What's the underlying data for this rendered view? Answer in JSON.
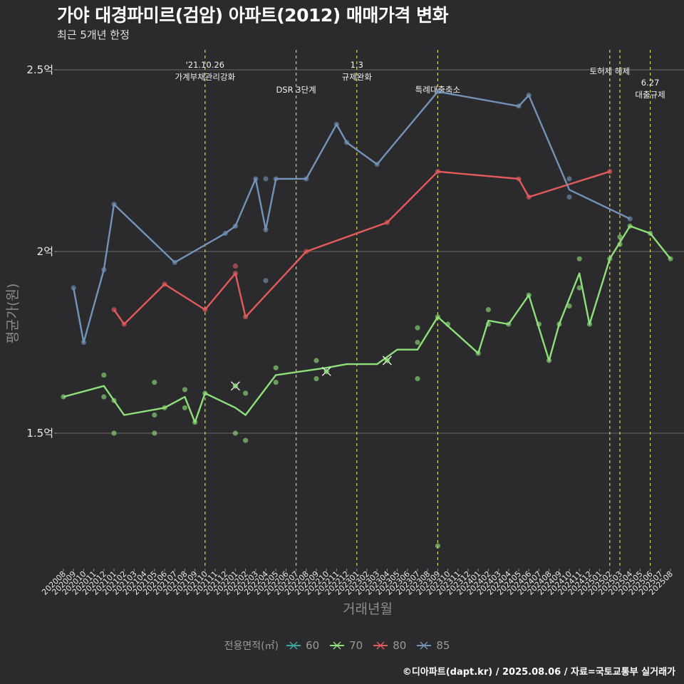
{
  "header": {
    "title": "가야 대경파미르(검암) 아파트(2012) 매매가격 변화",
    "subtitle": "최근 5개년 한정"
  },
  "caption": "©디아파트(dapt.kr) / 2025.08.06 / 자료=국토교통부 실거래가",
  "legend": {
    "title": "전용면적(㎡)",
    "items": [
      {
        "label": "60",
        "color": "#3aa8a0"
      },
      {
        "label": "70",
        "color": "#8ee07a"
      },
      {
        "label": "80",
        "color": "#e35b5b"
      },
      {
        "label": "85",
        "color": "#7393b8"
      }
    ]
  },
  "chart_data": {
    "type": "line",
    "xlabel": "거래년월",
    "ylabel": "평균가(원)",
    "ylim": [
      1.15,
      2.55
    ],
    "yticks": [
      {
        "value": 1.5,
        "label": "1.5억"
      },
      {
        "value": 2.0,
        "label": "2억"
      },
      {
        "value": 2.5,
        "label": "2.5억"
      }
    ],
    "categories": [
      "202008",
      "202009",
      "202010",
      "202011",
      "202012",
      "202101",
      "202102",
      "202103",
      "202104",
      "202105",
      "202106",
      "202107",
      "202108",
      "202109",
      "202110",
      "202111",
      "202112",
      "202201",
      "202202",
      "202203",
      "202204",
      "202205",
      "202206",
      "202207",
      "202208",
      "202209",
      "202210",
      "202211",
      "202212",
      "202301",
      "202302",
      "202303",
      "202304",
      "202305",
      "202306",
      "202307",
      "202308",
      "202309",
      "202310",
      "202311",
      "202312",
      "202401",
      "202402",
      "202403",
      "202404",
      "202405",
      "202406",
      "202407",
      "202408",
      "202409",
      "202410",
      "202411",
      "202412",
      "202501",
      "202502",
      "202503",
      "202504",
      "202505",
      "202506",
      "202507",
      "202508"
    ],
    "annotations": [
      {
        "x": "202110",
        "lines": [
          "'21.10.26",
          "가계부채관리강화"
        ],
        "pos": "top"
      },
      {
        "x": "202207",
        "lines": [
          "DSR 3단계"
        ],
        "pos": "mid"
      },
      {
        "x": "202301",
        "lines": [
          "1.3",
          "규제완화"
        ],
        "pos": "top"
      },
      {
        "x": "202309",
        "lines": [
          "특례대출축소"
        ],
        "pos": "mid"
      },
      {
        "x": "202502",
        "lines": [
          "토허제 해제"
        ],
        "pos": "top2"
      },
      {
        "x": "202503",
        "lines": [],
        "pos": "none"
      },
      {
        "x": "202506",
        "lines": [
          "6.27",
          "대출규제"
        ],
        "pos": "low"
      }
    ],
    "series": [
      {
        "name": "70",
        "color": "#8ee07a",
        "line": [
          [
            "202008",
            1.6
          ],
          [
            "202012",
            1.63
          ],
          [
            "202102",
            1.55
          ],
          [
            "202106",
            1.57
          ],
          [
            "202108",
            1.6
          ],
          [
            "202109",
            1.53
          ],
          [
            "202110",
            1.61
          ],
          [
            "202201",
            1.57
          ],
          [
            "202202",
            1.55
          ],
          [
            "202205",
            1.66
          ],
          [
            "202210",
            1.68
          ],
          [
            "202212",
            1.69
          ],
          [
            "202303",
            1.69
          ],
          [
            "202305",
            1.73
          ],
          [
            "202307",
            1.73
          ],
          [
            "202309",
            1.82
          ],
          [
            "202401",
            1.72
          ],
          [
            "202402",
            1.81
          ],
          [
            "202404",
            1.8
          ],
          [
            "202406",
            1.88
          ],
          [
            "202408",
            1.7
          ],
          [
            "202409",
            1.8
          ],
          [
            "202411",
            1.94
          ],
          [
            "202412",
            1.8
          ],
          [
            "202502",
            1.98
          ],
          [
            "202504",
            2.07
          ],
          [
            "202506",
            2.05
          ],
          [
            "202508",
            1.98
          ]
        ],
        "points": [
          [
            "202008",
            1.6
          ],
          [
            "202012",
            1.66
          ],
          [
            "202012",
            1.6
          ],
          [
            "202101",
            1.59
          ],
          [
            "202101",
            1.5
          ],
          [
            "202105",
            1.64
          ],
          [
            "202105",
            1.55
          ],
          [
            "202105",
            1.5
          ],
          [
            "202106",
            1.57
          ],
          [
            "202108",
            1.62
          ],
          [
            "202108",
            1.57
          ],
          [
            "202109",
            1.53
          ],
          [
            "202110",
            1.61
          ],
          [
            "202201",
            1.5
          ],
          [
            "202202",
            1.61
          ],
          [
            "202202",
            1.48
          ],
          [
            "202205",
            1.68
          ],
          [
            "202205",
            1.64
          ],
          [
            "202209",
            1.7
          ],
          [
            "202209",
            1.65
          ],
          [
            "202307",
            1.79
          ],
          [
            "202307",
            1.75
          ],
          [
            "202307",
            1.65
          ],
          [
            "202309",
            1.82
          ],
          [
            "202309",
            1.19
          ],
          [
            "202310",
            1.8
          ],
          [
            "202401",
            1.72
          ],
          [
            "202402",
            1.84
          ],
          [
            "202402",
            1.8
          ],
          [
            "202404",
            1.8
          ],
          [
            "202406",
            1.88
          ],
          [
            "202407",
            1.8
          ],
          [
            "202408",
            1.7
          ],
          [
            "202409",
            1.8
          ],
          [
            "202410",
            1.85
          ],
          [
            "202411",
            1.98
          ],
          [
            "202411",
            1.9
          ],
          [
            "202412",
            1.8
          ],
          [
            "202502",
            1.98
          ],
          [
            "202503",
            2.02
          ],
          [
            "202503",
            2.04
          ],
          [
            "202504",
            2.07
          ],
          [
            "202506",
            2.05
          ],
          [
            "202508",
            1.98
          ]
        ],
        "crosses": [
          [
            "202201",
            1.63
          ],
          [
            "202210",
            1.67
          ],
          [
            "202304",
            1.7
          ]
        ]
      },
      {
        "name": "80",
        "color": "#e35b5b",
        "line": [
          [
            "202101",
            1.84
          ],
          [
            "202102",
            1.8
          ],
          [
            "202106",
            1.91
          ],
          [
            "202110",
            1.84
          ],
          [
            "202201",
            1.94
          ],
          [
            "202202",
            1.82
          ],
          [
            "202208",
            2.0
          ],
          [
            "202304",
            2.08
          ],
          [
            "202309",
            2.22
          ],
          [
            "202405",
            2.2
          ],
          [
            "202406",
            2.15
          ],
          [
            "202502",
            2.22
          ]
        ],
        "points": [
          [
            "202101",
            1.84
          ],
          [
            "202102",
            1.8
          ],
          [
            "202106",
            1.91
          ],
          [
            "202110",
            1.84
          ],
          [
            "202201",
            1.96
          ],
          [
            "202201",
            1.94
          ],
          [
            "202202",
            1.82
          ],
          [
            "202208",
            2.0
          ],
          [
            "202304",
            2.08
          ],
          [
            "202309",
            2.22
          ],
          [
            "202405",
            2.2
          ],
          [
            "202406",
            2.15
          ],
          [
            "202502",
            2.22
          ]
        ],
        "crosses": []
      },
      {
        "name": "85",
        "color": "#7393b8",
        "line": [
          [
            "202009",
            1.9
          ],
          [
            "202010",
            1.75
          ],
          [
            "202012",
            1.95
          ],
          [
            "202101",
            2.13
          ],
          [
            "202107",
            1.97
          ],
          [
            "202112",
            2.05
          ],
          [
            "202201",
            2.07
          ],
          [
            "202203",
            2.2
          ],
          [
            "202204",
            2.06
          ],
          [
            "202205",
            2.2
          ],
          [
            "202208",
            2.2
          ],
          [
            "202211",
            2.35
          ],
          [
            "202212",
            2.3
          ],
          [
            "202303",
            2.24
          ],
          [
            "202309",
            2.44
          ],
          [
            "202405",
            2.4
          ],
          [
            "202406",
            2.43
          ],
          [
            "202410",
            2.17
          ],
          [
            "202504",
            2.09
          ]
        ],
        "points": [
          [
            "202009",
            1.9
          ],
          [
            "202010",
            1.75
          ],
          [
            "202012",
            1.95
          ],
          [
            "202101",
            2.13
          ],
          [
            "202107",
            1.97
          ],
          [
            "202112",
            2.05
          ],
          [
            "202201",
            2.07
          ],
          [
            "202203",
            2.2
          ],
          [
            "202204",
            2.2
          ],
          [
            "202204",
            2.06
          ],
          [
            "202204",
            1.92
          ],
          [
            "202205",
            2.2
          ],
          [
            "202208",
            2.2
          ],
          [
            "202211",
            2.35
          ],
          [
            "202212",
            2.3
          ],
          [
            "202303",
            2.24
          ],
          [
            "202309",
            2.44
          ],
          [
            "202405",
            2.4
          ],
          [
            "202406",
            2.43
          ],
          [
            "202410",
            2.2
          ],
          [
            "202410",
            2.15
          ],
          [
            "202504",
            2.09
          ]
        ],
        "crosses": []
      }
    ]
  }
}
